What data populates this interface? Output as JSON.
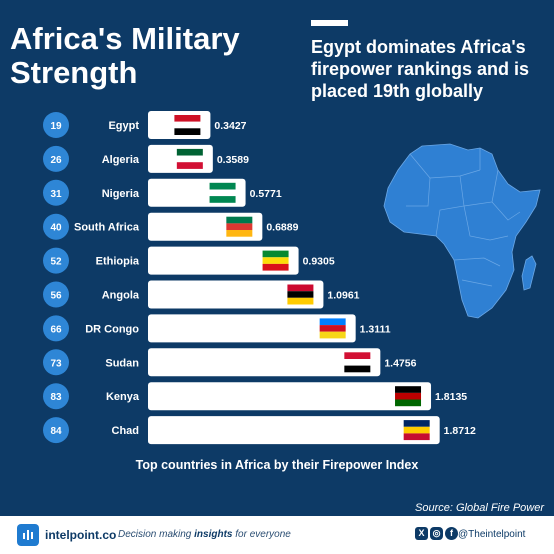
{
  "header": {
    "title_line1": "Africa's Military",
    "title_line2": "Strength",
    "subtitle": "Egypt dominates Africa's firepower rankings and is placed 19th globally"
  },
  "colors": {
    "background": "#0d3a66",
    "bar": "#ffffff",
    "rank_circle": "#2e86d6",
    "map": "#2f80d3"
  },
  "chart_data": {
    "type": "bar",
    "orientation": "horizontal",
    "title": "Top countries in Africa by their Firepower Index",
    "categories": [
      "Egypt",
      "Algeria",
      "Nigeria",
      "South Africa",
      "Ethiopia",
      "Angola",
      "DR Congo",
      "Sudan",
      "Kenya",
      "Chad"
    ],
    "ranks": [
      "19",
      "26",
      "31",
      "40",
      "52",
      "56",
      "66",
      "73",
      "83",
      "84"
    ],
    "values": [
      0.3427,
      0.3589,
      0.5771,
      0.6889,
      0.9305,
      1.0961,
      1.3111,
      1.4756,
      1.8135,
      1.8712
    ],
    "value_labels": [
      "0.3427",
      "0.3589",
      "0.5771",
      "0.6889",
      "0.9305",
      "1.0961",
      "1.3111",
      "1.4756",
      "1.8135",
      "1.8712"
    ],
    "flag_icons": [
      "egypt-flag-icon",
      "algeria-flag-icon",
      "nigeria-flag-icon",
      "south-africa-flag-icon",
      "ethiopia-flag-icon",
      "angola-flag-icon",
      "drc-flag-icon",
      "sudan-flag-icon",
      "kenya-flag-icon",
      "chad-flag-icon"
    ]
  },
  "source": "Source: Global Fire Power",
  "footer": {
    "brand": "intelpoint.co",
    "tagline_prefix": "Decision making ",
    "tagline_bold": "insights",
    "tagline_suffix": " for everyone",
    "handle": "@Theintelpoint"
  }
}
